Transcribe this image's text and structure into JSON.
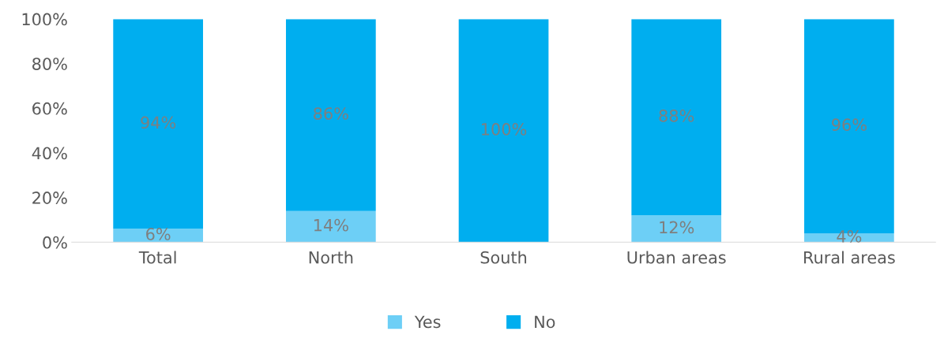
{
  "chart_data": {
    "type": "bar",
    "stacked": true,
    "categories": [
      "Total",
      "North",
      "South",
      "Urban areas",
      "Rural areas"
    ],
    "series": [
      {
        "name": "Yes",
        "color": "#6dcff6",
        "values": [
          6,
          14,
          0,
          12,
          4
        ],
        "value_labels": [
          "6%",
          "14%",
          null,
          "12%",
          "4%"
        ]
      },
      {
        "name": "No",
        "color": "#00aeef",
        "values": [
          94,
          86,
          100,
          88,
          96
        ],
        "value_labels": [
          "94%",
          "86%",
          "100%",
          "88%",
          "96%"
        ]
      }
    ],
    "ylim": [
      0,
      100
    ],
    "yticks": [
      {
        "value": 0,
        "label": "0%"
      },
      {
        "value": 20,
        "label": "20%"
      },
      {
        "value": 40,
        "label": "40%"
      },
      {
        "value": 60,
        "label": "60%"
      },
      {
        "value": 80,
        "label": "80%"
      },
      {
        "value": 100,
        "label": "100%"
      }
    ],
    "grid": false,
    "legend": "bottom"
  }
}
